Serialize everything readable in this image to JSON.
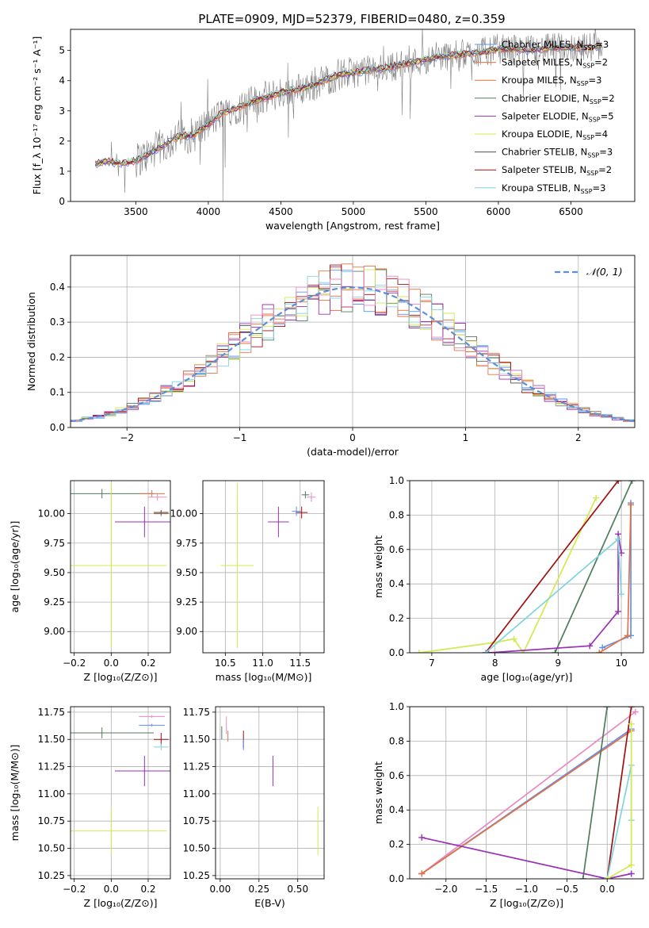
{
  "figure": {
    "title": "PLATE=0909, MJD=52379, FIBERID=0480, z=0.359"
  },
  "chart_data": [
    {
      "type": "line",
      "panel": "spectrum",
      "xlabel": "wavelength [Angstrom, rest frame]",
      "ylabel": "Flux [f_λ 10⁻¹⁷ erg cm⁻² s⁻¹ A⁻¹]",
      "xlim": [
        3050,
        6940
      ],
      "ylim": [
        0,
        5.7
      ],
      "xticks": [
        3500,
        4000,
        4500,
        5000,
        5500,
        6000,
        6500
      ],
      "yticks": [
        0,
        1,
        2,
        3,
        4,
        5
      ],
      "grid": false,
      "legend_position": "top-right",
      "observed_color": "#808080",
      "models": [
        {
          "name": "Chabrier MILES",
          "nssp": 3,
          "color": "#5b8ff9"
        },
        {
          "name": "Salpeter MILES",
          "nssp": 2,
          "color": "#e8713f"
        },
        {
          "name": "Kroupa MILES",
          "nssp": 3,
          "color": "#e8713f"
        },
        {
          "name": "Chabrier ELODIE",
          "nssp": 2,
          "color": "#4f7c5d"
        },
        {
          "name": "Salpeter ELODIE",
          "nssp": 5,
          "color": "#9b30b8"
        },
        {
          "name": "Kroupa ELODIE",
          "nssp": 4,
          "color": "#d4e94f"
        },
        {
          "name": "Chabrier STELIB",
          "nssp": 3,
          "color": "#505050"
        },
        {
          "name": "Salpeter STELIB",
          "nssp": 2,
          "color": "#a01010"
        },
        {
          "name": "Kroupa STELIB",
          "nssp": 3,
          "color": "#7fd4e0"
        }
      ],
      "continuum": [
        [
          3220,
          1.25
        ],
        [
          3300,
          1.32
        ],
        [
          3400,
          1.25
        ],
        [
          3500,
          1.35
        ],
        [
          3600,
          1.6
        ],
        [
          3700,
          1.9
        ],
        [
          3800,
          2.15
        ],
        [
          3900,
          2.2
        ],
        [
          4000,
          2.55
        ],
        [
          4100,
          2.95
        ],
        [
          4200,
          3.1
        ],
        [
          4300,
          3.3
        ],
        [
          4400,
          3.45
        ],
        [
          4500,
          3.6
        ],
        [
          4600,
          3.7
        ],
        [
          4700,
          3.8
        ],
        [
          4800,
          4.0
        ],
        [
          4900,
          4.2
        ],
        [
          5000,
          4.25
        ],
        [
          5100,
          4.35
        ],
        [
          5200,
          4.4
        ],
        [
          5300,
          4.5
        ],
        [
          5400,
          4.6
        ],
        [
          5500,
          4.7
        ],
        [
          5600,
          4.8
        ],
        [
          5700,
          4.85
        ],
        [
          5800,
          4.9
        ],
        [
          5900,
          4.95
        ],
        [
          6000,
          5.05
        ],
        [
          6100,
          5.05
        ],
        [
          6200,
          5.0
        ],
        [
          6300,
          5.05
        ],
        [
          6400,
          5.1
        ],
        [
          6500,
          5.1
        ],
        [
          6600,
          5.1
        ],
        [
          6700,
          5.15
        ]
      ]
    },
    {
      "type": "line",
      "panel": "residual-histogram",
      "xlabel": "(data-model)/error",
      "ylabel": "Normed distribution",
      "xlim": [
        -2.5,
        2.5
      ],
      "ylim": [
        0,
        0.49
      ],
      "xticks": [
        -2,
        -1,
        0,
        1,
        2
      ],
      "yticks": [
        0.0,
        0.1,
        0.2,
        0.3,
        0.4
      ],
      "grid": true,
      "legend_position": "top-right",
      "series": [
        {
          "name": "𝒩(0, 1)",
          "style": "dashed",
          "color": "#5b8fd9"
        }
      ]
    },
    {
      "type": "scatter",
      "panel": "age-vs-Z",
      "xlabel": "Z [log₁₀(Z/Z⊙)]",
      "ylabel": "age  [log₁₀(age/yr)]",
      "xlim": [
        -0.22,
        0.32
      ],
      "ylim": [
        8.82,
        10.28
      ],
      "xticks": [
        -0.2,
        0.0,
        0.2
      ],
      "yticks": [
        9.0,
        9.25,
        9.5,
        9.75,
        10.0
      ],
      "grid": true,
      "points": [
        {
          "x": -0.05,
          "y": 10.17,
          "xerr": 0.28,
          "yerr": 0.04,
          "color": "#4f7c5d"
        },
        {
          "x": 0.22,
          "y": 10.17,
          "xerr": 0.07,
          "yerr": 0.03,
          "color": "#e8713f"
        },
        {
          "x": 0.25,
          "y": 10.14,
          "xerr": 0.05,
          "yerr": 0.03,
          "color": "#e88ac0"
        },
        {
          "x": 0.27,
          "y": 10.01,
          "xerr": 0.04,
          "yerr": 0.02,
          "color": "#a01010"
        },
        {
          "x": 0.27,
          "y": 10.0,
          "xerr": 0.04,
          "yerr": 0.02,
          "color": "#4f7c5d"
        },
        {
          "x": 0.18,
          "y": 9.93,
          "xerr": 0.16,
          "yerr": 0.13,
          "color": "#9b30b8"
        },
        {
          "x": 0.0,
          "y": 9.56,
          "xerr": 0.3,
          "yerr": 0.7,
          "color": "#d4e94f"
        }
      ]
    },
    {
      "type": "scatter",
      "panel": "age-vs-mass",
      "xlabel": "mass [log₁₀(M/M⊙)]",
      "ylabel": "",
      "xlim": [
        10.2,
        11.82
      ],
      "ylim": [
        8.82,
        10.28
      ],
      "xticks": [
        10.5,
        11.0,
        11.5
      ],
      "yticks": [
        9.0,
        9.25,
        9.5,
        9.75,
        10.0
      ],
      "grid": true,
      "points": [
        {
          "x": 11.57,
          "y": 10.16,
          "xerr": 0.05,
          "yerr": 0.03,
          "color": "#4f7c5d"
        },
        {
          "x": 11.65,
          "y": 10.14,
          "xerr": 0.06,
          "yerr": 0.04,
          "color": "#e88ac0"
        },
        {
          "x": 11.52,
          "y": 10.01,
          "xerr": 0.08,
          "yerr": 0.05,
          "color": "#a01010"
        },
        {
          "x": 11.45,
          "y": 10.02,
          "xerr": 0.06,
          "yerr": 0.04,
          "color": "#5b8ff9"
        },
        {
          "x": 11.21,
          "y": 9.93,
          "xerr": 0.14,
          "yerr": 0.13,
          "color": "#9b30b8"
        },
        {
          "x": 10.66,
          "y": 9.56,
          "xerr": 0.22,
          "yerr": 0.7,
          "color": "#d4e94f"
        }
      ]
    },
    {
      "type": "line",
      "panel": "mass-weight-vs-age",
      "xlabel": "age  [log₁₀(age/yr)]",
      "ylabel": "mass weight",
      "xlim": [
        6.65,
        10.35
      ],
      "ylim": [
        0,
        1.0
      ],
      "xticks": [
        7,
        8,
        9,
        10
      ],
      "yticks": [
        0.0,
        0.2,
        0.4,
        0.6,
        0.8,
        1.0
      ],
      "grid": true,
      "series": [
        {
          "color": "#d4e94f",
          "points": [
            [
              6.8,
              0.0
            ],
            [
              8.0,
              0.06
            ],
            [
              8.3,
              0.08
            ],
            [
              8.45,
              0.0
            ],
            [
              9.6,
              0.9
            ]
          ]
        },
        {
          "color": "#a01010",
          "points": [
            [
              7.85,
              0.0
            ],
            [
              9.95,
              1.0
            ]
          ]
        },
        {
          "color": "#4f7c5d",
          "points": [
            [
              8.95,
              0.0
            ],
            [
              10.17,
              1.0
            ]
          ]
        },
        {
          "color": "#9b30b8",
          "points": [
            [
              7.9,
              0.0
            ],
            [
              9.5,
              0.04
            ],
            [
              9.95,
              0.24
            ],
            [
              9.95,
              0.69
            ],
            [
              10.0,
              0.58
            ]
          ]
        },
        {
          "color": "#7fd4e0",
          "points": [
            [
              7.85,
              0.0
            ],
            [
              9.95,
              0.66
            ],
            [
              10.0,
              0.34
            ]
          ]
        },
        {
          "color": "#5b8ff9",
          "points": [
            [
              9.7,
              0.03
            ],
            [
              10.15,
              0.1
            ],
            [
              10.15,
              0.87
            ]
          ]
        },
        {
          "color": "#e8713f",
          "points": [
            [
              9.65,
              0.0
            ],
            [
              10.1,
              0.1
            ],
            [
              10.15,
              0.86
            ]
          ]
        }
      ]
    },
    {
      "type": "scatter",
      "panel": "mass-vs-Z",
      "xlabel": "Z [log₁₀(Z/Z⊙)]",
      "ylabel": "mass [log₁₀(M/M⊙)]",
      "xlim": [
        -0.22,
        0.32
      ],
      "ylim": [
        10.22,
        11.8
      ],
      "xticks": [
        -0.2,
        0.0,
        0.2
      ],
      "yticks": [
        10.25,
        10.5,
        10.75,
        11.0,
        11.25,
        11.5,
        11.75
      ],
      "grid": true,
      "points": [
        {
          "x": 0.22,
          "y": 11.71,
          "xerr": 0.07,
          "yerr": 0.0,
          "color": "#e88ac0"
        },
        {
          "x": 0.22,
          "y": 11.63,
          "xerr": 0.07,
          "yerr": 0.0,
          "color": "#5b8ff9"
        },
        {
          "x": -0.05,
          "y": 11.56,
          "xerr": 0.28,
          "yerr": 0.05,
          "color": "#4f7c5d"
        },
        {
          "x": 0.27,
          "y": 11.5,
          "xerr": 0.04,
          "yerr": 0.06,
          "color": "#a01010"
        },
        {
          "x": 0.27,
          "y": 11.43,
          "xerr": 0.04,
          "yerr": 0.03,
          "color": "#7fd4e0"
        },
        {
          "x": 0.18,
          "y": 11.21,
          "xerr": 0.16,
          "yerr": 0.14,
          "color": "#9b30b8"
        },
        {
          "x": 0.0,
          "y": 10.66,
          "xerr": 0.3,
          "yerr": 0.22,
          "color": "#d4e94f"
        }
      ]
    },
    {
      "type": "scatter",
      "panel": "mass-vs-ebv",
      "xlabel": "E(B-V)",
      "ylabel": "",
      "xlim": [
        -0.03,
        0.67
      ],
      "ylim": [
        10.22,
        11.8
      ],
      "xticks": [
        0.0,
        0.25,
        0.5
      ],
      "yticks": [
        10.25,
        10.5,
        10.75,
        11.0,
        11.25,
        11.5,
        11.75
      ],
      "grid": true,
      "points": [
        {
          "x": 0.01,
          "y": 11.56,
          "xerr": 0.0,
          "yerr": 0.06,
          "color": "#4f7c5d"
        },
        {
          "x": 0.04,
          "y": 11.63,
          "xerr": 0.0,
          "yerr": 0.08,
          "color": "#e88ac0"
        },
        {
          "x": 0.05,
          "y": 11.53,
          "xerr": 0.0,
          "yerr": 0.05,
          "color": "#e8713f"
        },
        {
          "x": 0.15,
          "y": 11.5,
          "xerr": 0.0,
          "yerr": 0.08,
          "color": "#a01010"
        },
        {
          "x": 0.15,
          "y": 11.45,
          "xerr": 0.0,
          "yerr": 0.05,
          "color": "#5b8ff9"
        },
        {
          "x": 0.34,
          "y": 11.21,
          "xerr": 0.0,
          "yerr": 0.14,
          "color": "#9b30b8"
        },
        {
          "x": 0.63,
          "y": 10.66,
          "xerr": 0.0,
          "yerr": 0.22,
          "color": "#d4e94f"
        }
      ]
    },
    {
      "type": "line",
      "panel": "mass-weight-vs-Z",
      "xlabel": "Z [log₁₀(Z/Z⊙)]",
      "ylabel": "mass weight",
      "xlim": [
        -2.45,
        0.45
      ],
      "ylim": [
        0,
        1.0
      ],
      "xticks": [
        -2.0,
        -1.5,
        -1.0,
        -0.5,
        0.0
      ],
      "yticks": [
        0.0,
        0.2,
        0.4,
        0.6,
        0.8,
        1.0
      ],
      "grid": true,
      "series": [
        {
          "color": "#e88ac0",
          "points": [
            [
              -2.3,
              0.03
            ],
            [
              0.35,
              0.97
            ]
          ]
        },
        {
          "color": "#5b8ff9",
          "points": [
            [
              -2.3,
              0.03
            ],
            [
              0.3,
              0.87
            ]
          ]
        },
        {
          "color": "#e8713f",
          "points": [
            [
              -2.3,
              0.03
            ],
            [
              0.3,
              0.86
            ]
          ]
        },
        {
          "color": "#4f7c5d",
          "points": [
            [
              -0.3,
              0.0
            ],
            [
              0.0,
              1.0
            ]
          ]
        },
        {
          "color": "#a01010",
          "points": [
            [
              0.0,
              0.0
            ],
            [
              0.3,
              1.0
            ]
          ]
        },
        {
          "color": "#9b30b8",
          "points": [
            [
              -2.3,
              0.24
            ],
            [
              0.0,
              0.0
            ],
            [
              0.3,
              0.03
            ]
          ]
        },
        {
          "color": "#7fd4e0",
          "points": [
            [
              0.0,
              0.0
            ],
            [
              0.3,
              0.66
            ],
            [
              0.3,
              0.34
            ]
          ]
        },
        {
          "color": "#d4e94f",
          "points": [
            [
              0.0,
              0.0
            ],
            [
              0.3,
              0.08
            ],
            [
              0.3,
              0.9
            ]
          ]
        }
      ]
    }
  ]
}
